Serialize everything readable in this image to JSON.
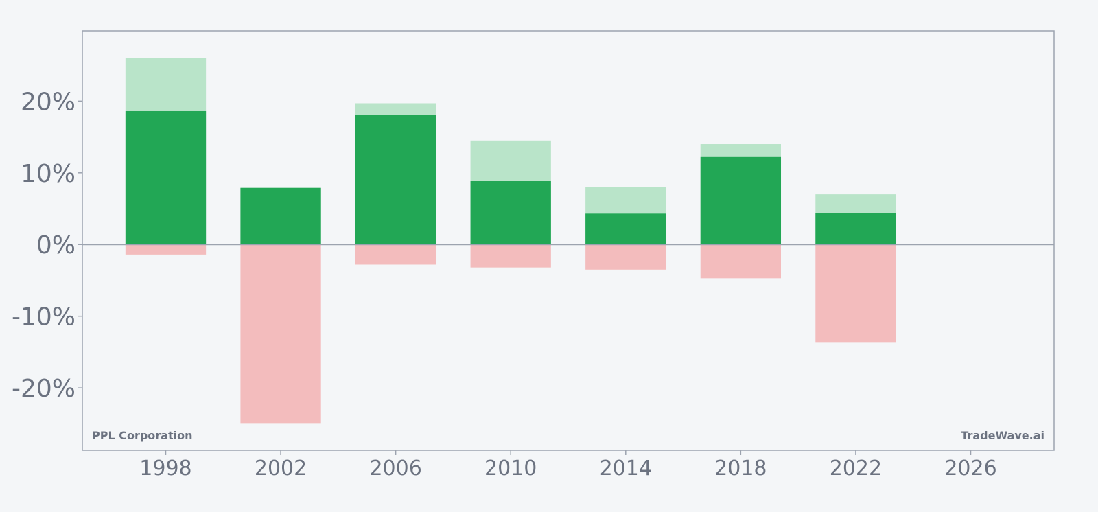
{
  "chart_data": {
    "type": "bar",
    "subtype": "overlaid range bars",
    "x": [
      1998,
      2002,
      2006,
      2010,
      2014,
      2018,
      2022
    ],
    "series": [
      {
        "values": [
          26.0,
          7.9,
          19.7,
          14.5,
          8.0,
          14.0,
          7.0
        ],
        "color": "#b9e4c9"
      },
      {
        "values": [
          18.6,
          7.9,
          18.1,
          8.9,
          4.3,
          12.2,
          4.4
        ],
        "color": "#22a755"
      },
      {
        "values": [
          -1.4,
          -25.0,
          -2.8,
          -3.2,
          -3.5,
          -4.7,
          -13.7
        ],
        "color": "#f3bcbd"
      }
    ],
    "xticks": [
      "1998",
      "2002",
      "2006",
      "2010",
      "2014",
      "2018",
      "2022",
      "2026"
    ],
    "yticks": [
      "-20%",
      "-10%",
      "0%",
      "10%",
      "20%"
    ],
    "ytick_values": [
      -20,
      -10,
      0,
      10,
      20
    ],
    "xlim": [
      1995.1,
      2028.9
    ],
    "ylim": [
      -28.7,
      29.8
    ],
    "grid": false,
    "legend": "none",
    "zero_line_color": "#9ca3af",
    "axis_color": "#9ca3af"
  },
  "annotations": {
    "company": "PPL Corporation",
    "source": "TradeWave.ai"
  },
  "colors": {
    "background": "#f4f6f8",
    "text": "#6b7280"
  }
}
